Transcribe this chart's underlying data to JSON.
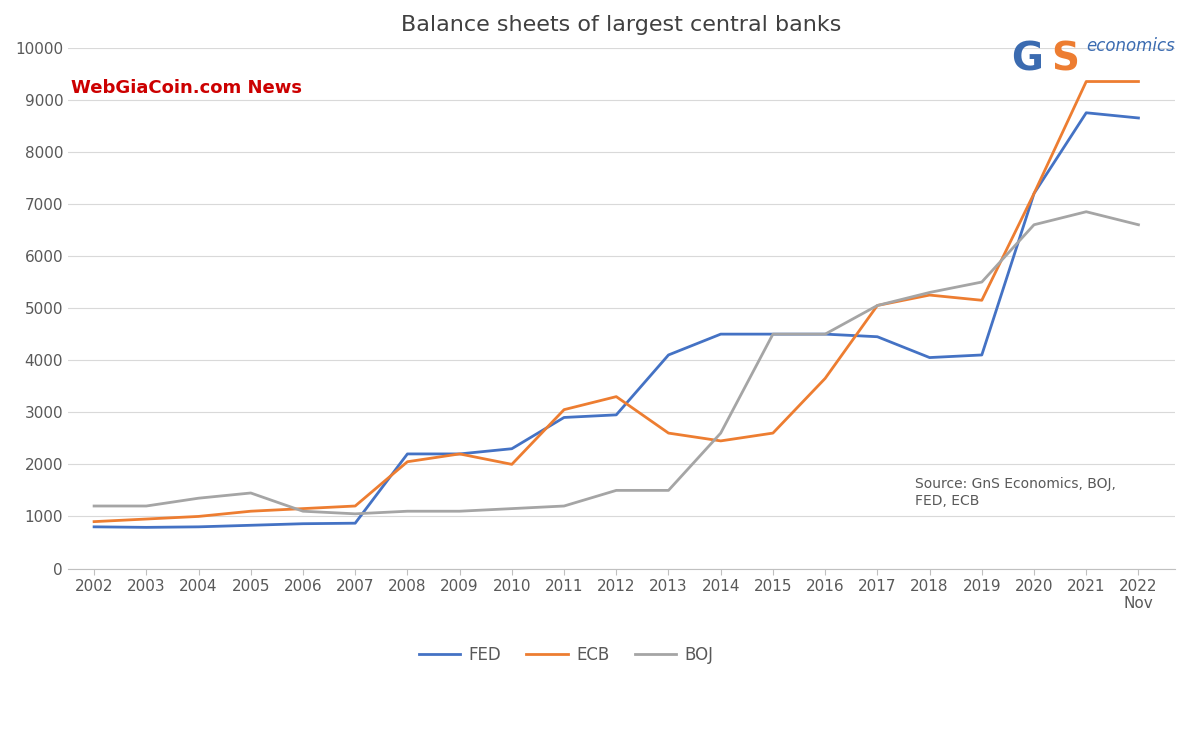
{
  "title": "Balance sheets of largest central banks",
  "watermark": "WebGiaCoin.com News",
  "source_text": "Source: GnS Economics, BOJ,\nFED, ECB",
  "years": [
    2002,
    2003,
    2004,
    2005,
    2006,
    2007,
    2008,
    2009,
    2010,
    2011,
    2012,
    2013,
    2014,
    2015,
    2016,
    2017,
    2018,
    2019,
    2020,
    2021,
    2022
  ],
  "year_labels": [
    "2002",
    "2003",
    "2004",
    "2005",
    "2006",
    "2007",
    "2008",
    "2009",
    "2010",
    "2011",
    "2012",
    "2013",
    "2014",
    "2015",
    "2016",
    "2017",
    "2018",
    "2019",
    "2020",
    "2021",
    "2022\nNov"
  ],
  "FED": [
    800,
    790,
    800,
    830,
    860,
    870,
    2200,
    2200,
    2300,
    2900,
    2950,
    4100,
    4500,
    4500,
    4500,
    4450,
    4050,
    4100,
    7200,
    8750,
    8650
  ],
  "ECB": [
    900,
    950,
    1000,
    1100,
    1150,
    1200,
    2050,
    2200,
    2000,
    3050,
    3300,
    2600,
    2450,
    2600,
    3650,
    5050,
    5250,
    5150,
    7200,
    9350,
    9350
  ],
  "BOJ": [
    1200,
    1200,
    1350,
    1450,
    1100,
    1050,
    1100,
    1100,
    1150,
    1200,
    1500,
    1500,
    2600,
    4500,
    4500,
    5050,
    5300,
    5500,
    6600,
    6850,
    6600
  ],
  "fed_color": "#4472C4",
  "ecb_color": "#ED7D31",
  "boj_color": "#A5A5A5",
  "ylim": [
    0,
    10000
  ],
  "yticks": [
    0,
    1000,
    2000,
    3000,
    4000,
    5000,
    6000,
    7000,
    8000,
    9000,
    10000
  ],
  "background_color": "#FFFFFF",
  "grid_color": "#D9D9D9",
  "title_fontsize": 16,
  "watermark_color": "#CC0000",
  "line_width": 2.0,
  "logo_g_color": "#4472C4",
  "logo_s_color": "#ED7D31",
  "logo_economics_color": "#4472C4"
}
